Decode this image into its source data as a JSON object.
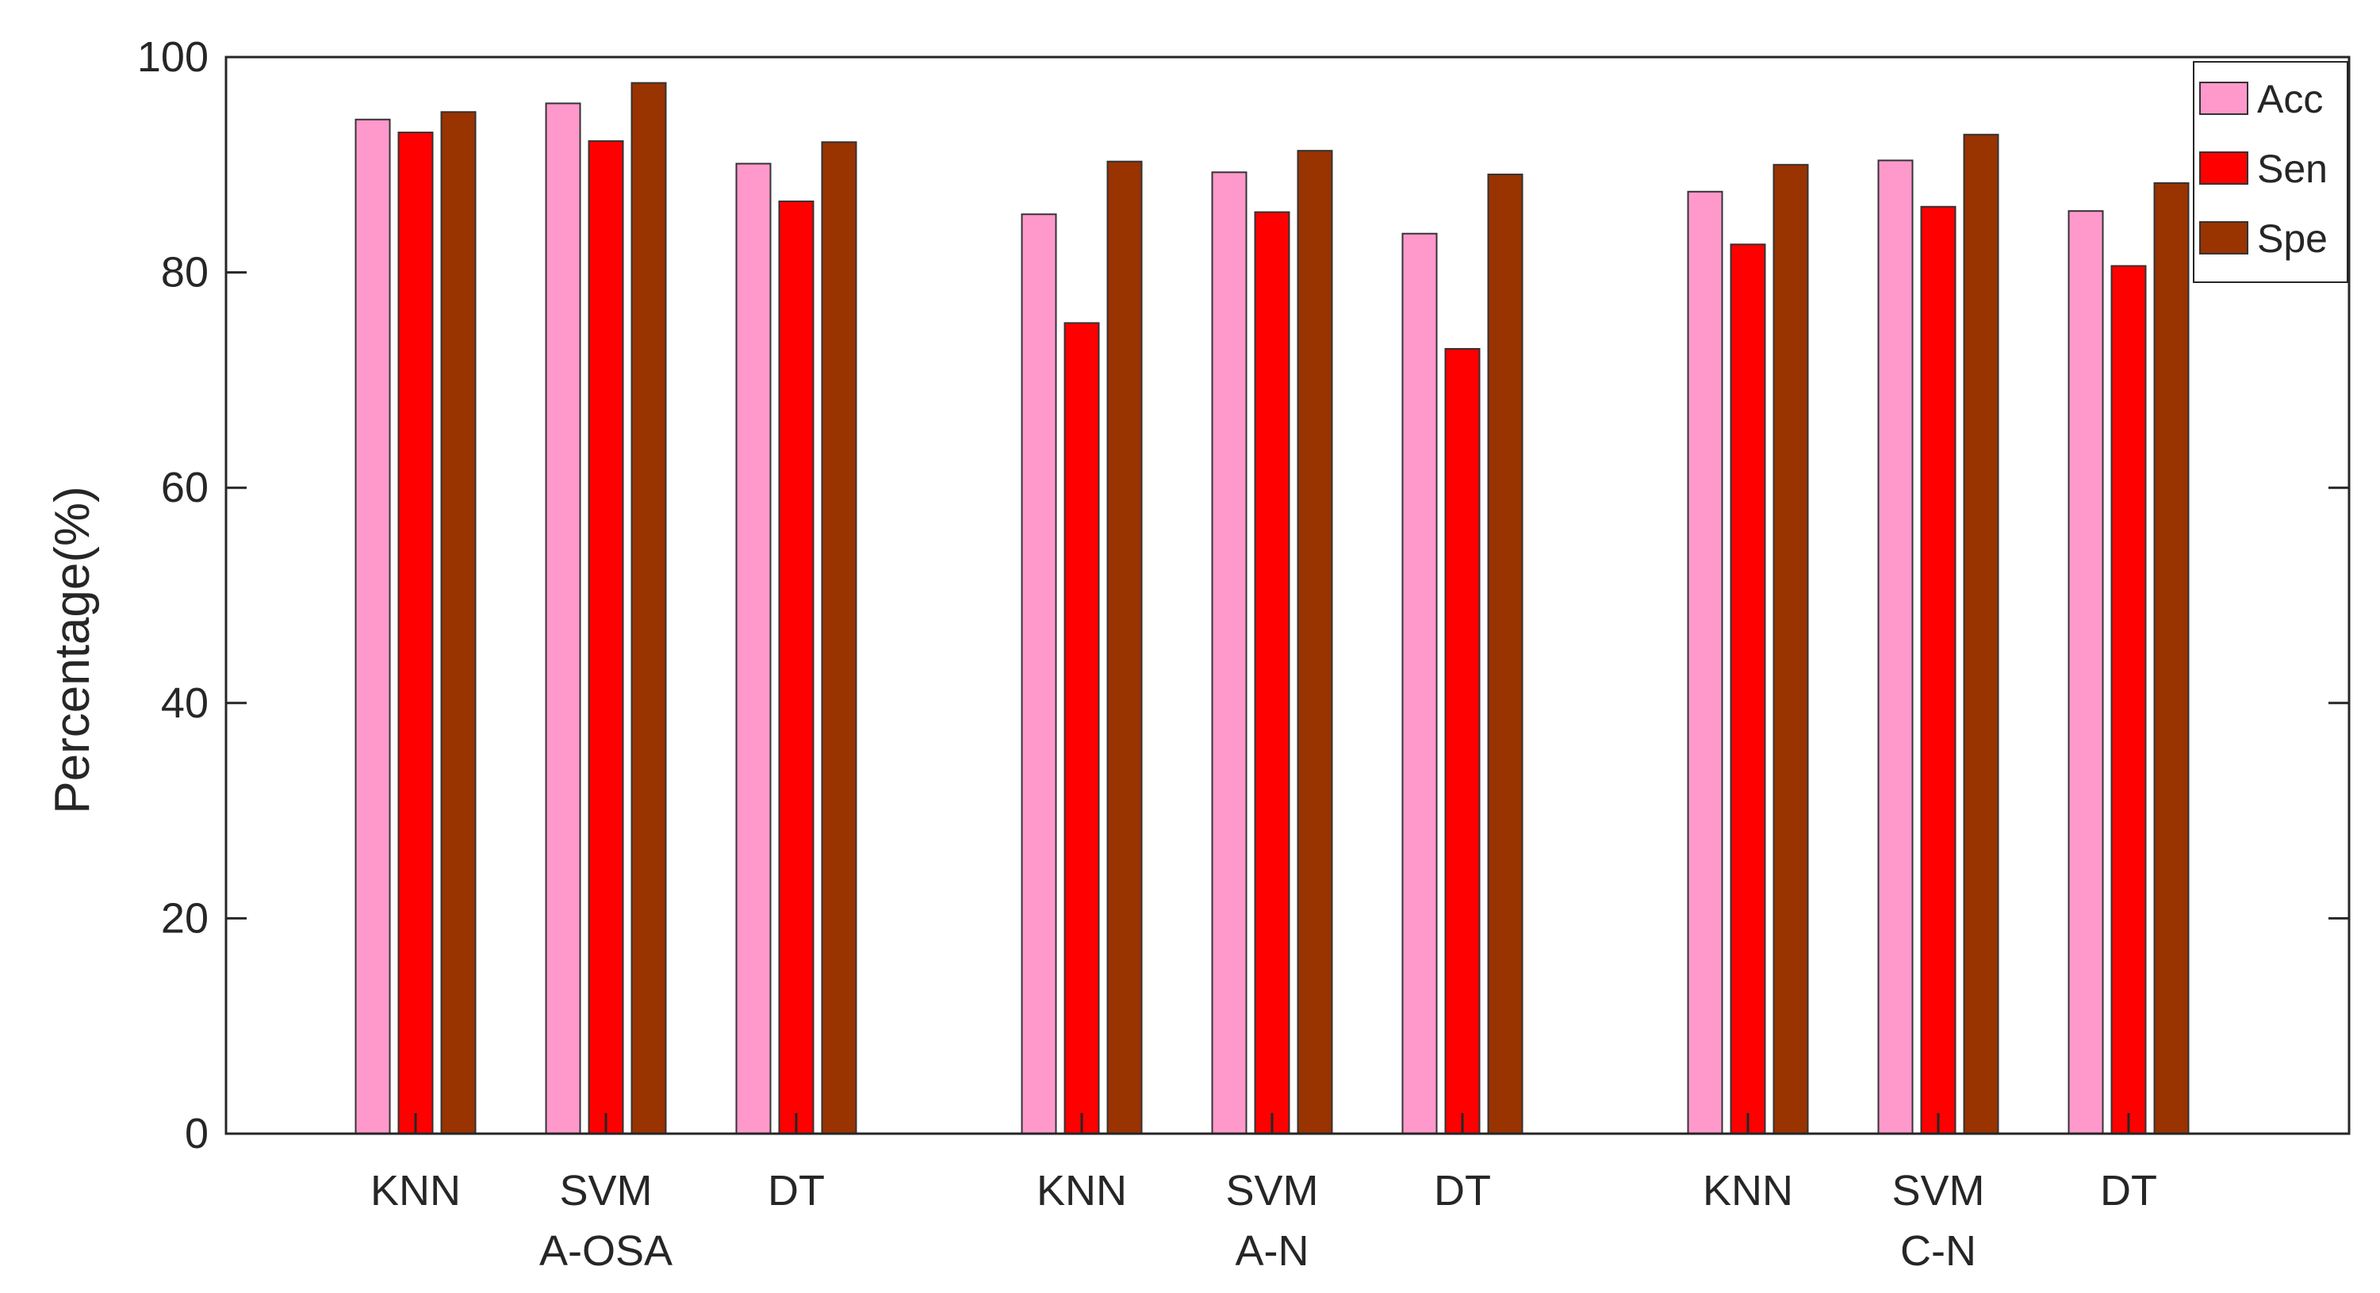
{
  "chart_data": {
    "type": "bar",
    "title": "",
    "xlabel": "",
    "ylabel": "Percentage(%)",
    "ylim": [
      0,
      100
    ],
    "yticks": [
      "0",
      "20",
      "40",
      "60",
      "80",
      "100"
    ],
    "categories": [
      "KNN",
      "SVM",
      "DT",
      "KNN",
      "SVM",
      "DT",
      "KNN",
      "SVM",
      "DT"
    ],
    "groups": [
      {
        "label": "A-OSA",
        "center_index": 1
      },
      {
        "label": "A-N",
        "center_index": 4
      },
      {
        "label": "C-N",
        "center_index": 7
      }
    ],
    "series": [
      {
        "name": "Acc",
        "color": "#ff99cc",
        "values": [
          94.2,
          95.7,
          90.1,
          85.4,
          89.3,
          83.6,
          87.5,
          90.4,
          85.7
        ]
      },
      {
        "name": "Sen",
        "color": "#ff0000",
        "values": [
          93.0,
          92.2,
          86.6,
          75.3,
          85.6,
          72.9,
          82.6,
          86.1,
          80.6
        ]
      },
      {
        "name": "Spe",
        "color": "#993300",
        "values": [
          94.9,
          97.6,
          92.1,
          90.3,
          91.3,
          89.1,
          90.0,
          92.8,
          88.3
        ]
      }
    ],
    "legend_position": "top-right",
    "grid": false
  }
}
